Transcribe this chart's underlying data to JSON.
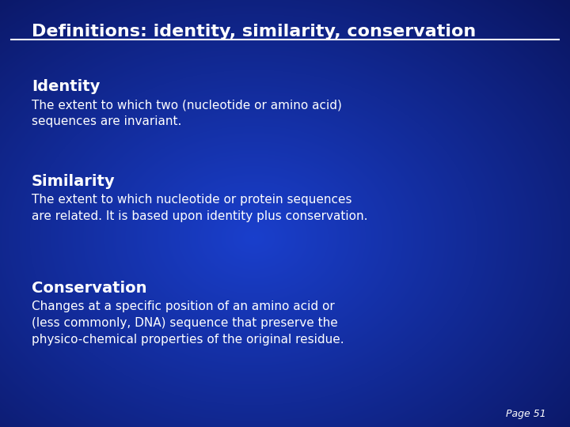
{
  "title": "Definitions: identity, similarity, conservation",
  "bg_color": "#0a1560",
  "bg_center_color": "#1a3fcc",
  "title_color": "#ffffff",
  "text_color": "#ffffff",
  "line_color": "#ffffff",
  "heading_font_size": 14,
  "body_font_size": 11,
  "title_font_size": 16,
  "page_label": "Page 51",
  "sections": [
    {
      "heading": "Identity",
      "body": "The extent to which two (nucleotide or amino acid)\nsequences are invariant."
    },
    {
      "heading": "Similarity",
      "body": "The extent to which nucleotide or protein sequences\nare related. It is based upon identity plus conservation."
    },
    {
      "heading": "Conservation",
      "body": "Changes at a specific position of an amino acid or\n(less commonly, DNA) sequence that preserve the\nphysico-chemical properties of the original residue."
    }
  ]
}
